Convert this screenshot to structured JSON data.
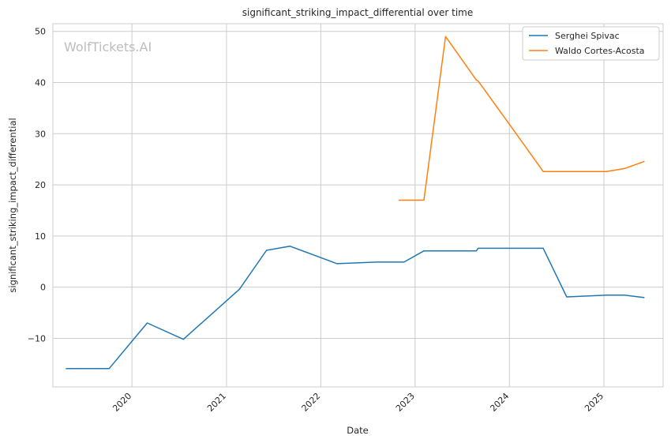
{
  "chart_data": {
    "type": "line",
    "title": "significant_striking_impact_differential over time",
    "xlabel": "Date",
    "ylabel": "significant_striking_impact_differential",
    "watermark": "WolfTickets.AI",
    "x_tick_labels": [
      "2020",
      "2021",
      "2022",
      "2023",
      "2024",
      "2025"
    ],
    "y_ticks": [
      -10,
      0,
      10,
      20,
      30,
      40,
      50
    ],
    "xlim": [
      "2019-03-01",
      "2025-08-18"
    ],
    "ylim": [
      -19.5,
      51.5
    ],
    "grid": true,
    "legend_position": "top-right",
    "series": [
      {
        "name": "Serghei Spivac",
        "color": "#1f77b4",
        "points": [
          [
            "2019-04-20",
            -15.9
          ],
          [
            "2019-10-05",
            -15.9
          ],
          [
            "2020-02-29",
            -7.0
          ],
          [
            "2020-07-18",
            -10.2
          ],
          [
            "2021-02-20",
            -0.4
          ],
          [
            "2021-06-05",
            7.2
          ],
          [
            "2021-09-04",
            8.0
          ],
          [
            "2022-03-05",
            4.6
          ],
          [
            "2022-08-06",
            4.9
          ],
          [
            "2022-11-19",
            4.9
          ],
          [
            "2023-02-04",
            7.1
          ],
          [
            "2023-08-26",
            7.1
          ],
          [
            "2023-09-02",
            7.6
          ],
          [
            "2024-05-11",
            7.6
          ],
          [
            "2024-08-10",
            -1.9
          ],
          [
            "2025-01-11",
            -1.55
          ],
          [
            "2025-03-22",
            -1.55
          ],
          [
            "2025-06-07",
            -2.05
          ]
        ]
      },
      {
        "name": "Waldo Cortes-Acosta",
        "color": "#ff7f0e",
        "points": [
          [
            "2022-10-29",
            17.0
          ],
          [
            "2023-02-04",
            17.0
          ],
          [
            "2023-04-29",
            49.0
          ],
          [
            "2023-08-26",
            40.5
          ],
          [
            "2023-09-02",
            40.3
          ],
          [
            "2024-01-13",
            31.0
          ],
          [
            "2024-05-11",
            22.6
          ],
          [
            "2025-01-11",
            22.6
          ],
          [
            "2025-03-22",
            23.2
          ],
          [
            "2025-06-07",
            24.6
          ]
        ]
      }
    ]
  }
}
